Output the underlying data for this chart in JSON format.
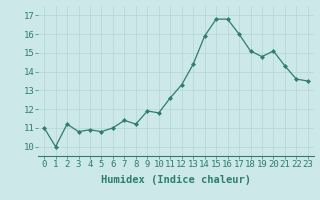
{
  "x": [
    0,
    1,
    2,
    3,
    4,
    5,
    6,
    7,
    8,
    9,
    10,
    11,
    12,
    13,
    14,
    15,
    16,
    17,
    18,
    19,
    20,
    21,
    22,
    23
  ],
  "y": [
    11.0,
    10.0,
    11.2,
    10.8,
    10.9,
    10.8,
    11.0,
    11.4,
    11.2,
    11.9,
    11.8,
    12.6,
    13.3,
    14.4,
    15.9,
    16.8,
    16.8,
    16.0,
    15.1,
    14.8,
    15.1,
    14.3,
    13.6,
    13.5
  ],
  "line_color": "#2e7d6e",
  "marker": "D",
  "marker_size": 2.0,
  "bg_color": "#cce8e8",
  "grid_color": "#b0d0d0",
  "xlabel": "Humidex (Indice chaleur)",
  "ylim": [
    9.5,
    17.5
  ],
  "xlim": [
    -0.5,
    23.5
  ],
  "yticks": [
    10,
    11,
    12,
    13,
    14,
    15,
    16,
    17
  ],
  "xticks": [
    0,
    1,
    2,
    3,
    4,
    5,
    6,
    7,
    8,
    9,
    10,
    11,
    12,
    13,
    14,
    15,
    16,
    17,
    18,
    19,
    20,
    21,
    22,
    23
  ],
  "tick_fontsize": 6.5,
  "xlabel_fontsize": 7.5
}
